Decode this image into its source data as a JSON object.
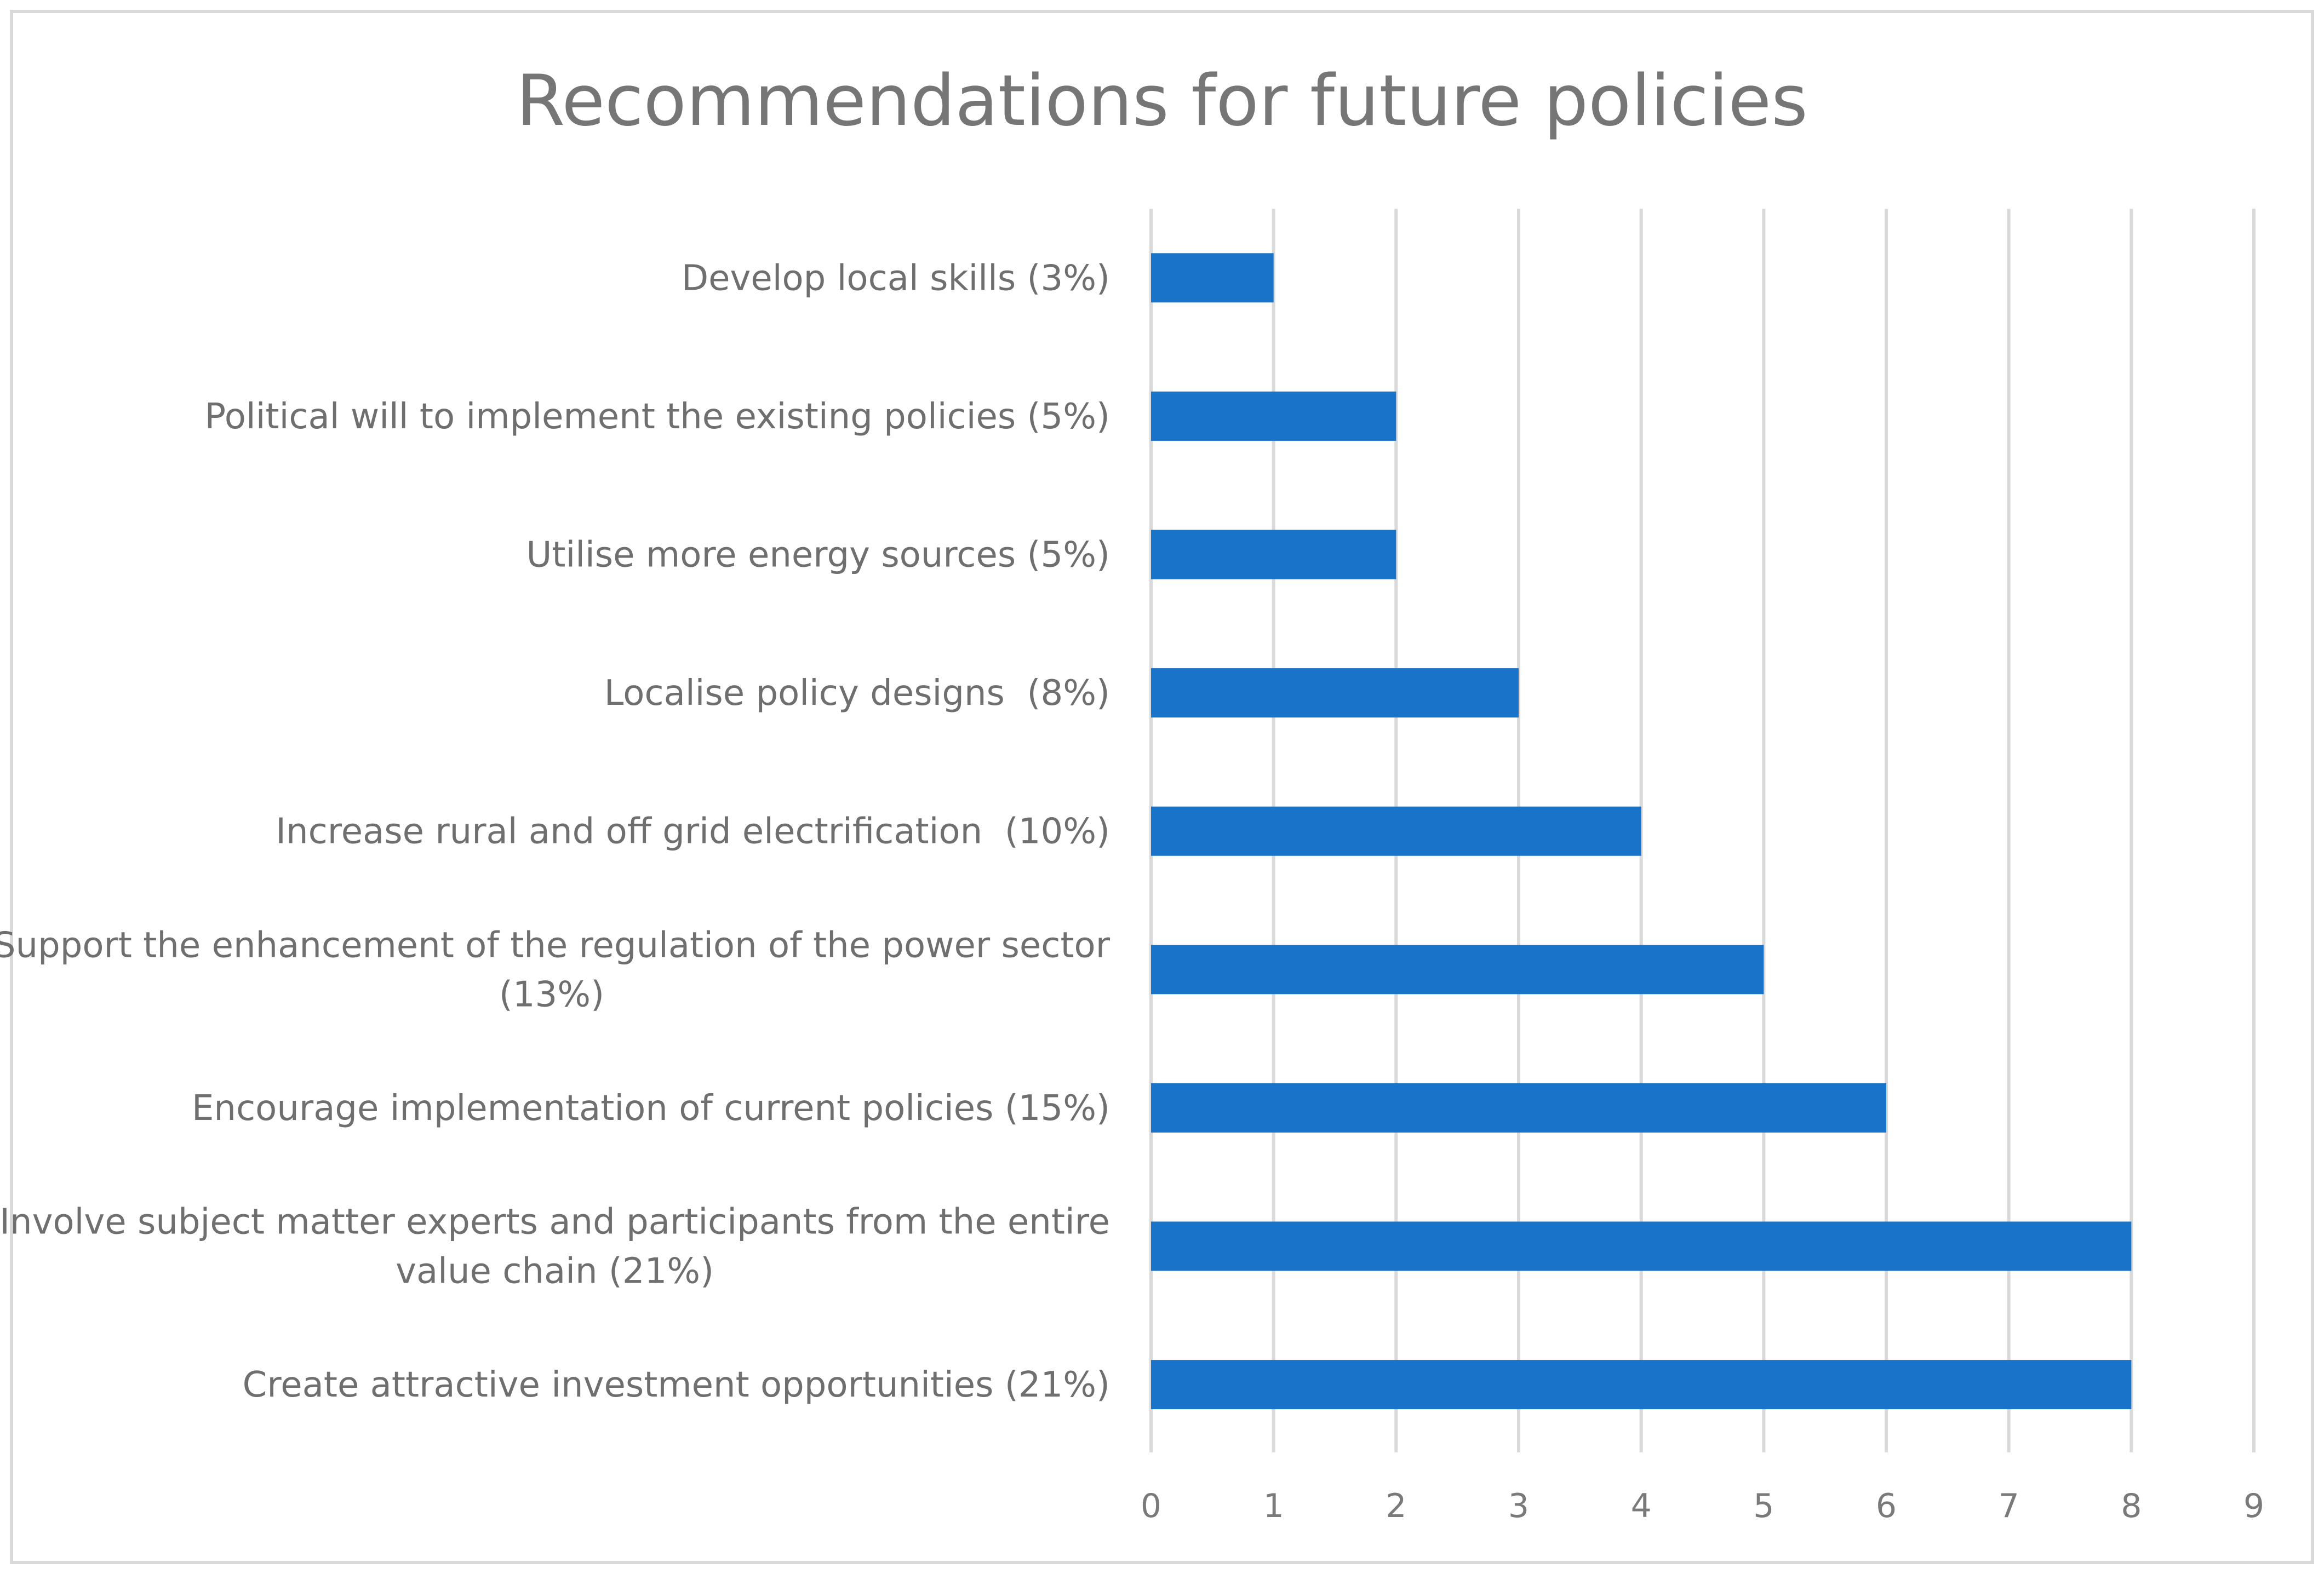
{
  "chart_data": {
    "type": "bar",
    "orientation": "horizontal",
    "title": "Recommendations for future policies",
    "xlabel": "",
    "ylabel": "",
    "xlim": [
      0,
      9
    ],
    "xticks": [
      0,
      1,
      2,
      3,
      4,
      5,
      6,
      7,
      8,
      9
    ],
    "grid": true,
    "legend": "none",
    "bar_color": "#1873c9",
    "categories": [
      [
        "Develop local skills (3%)"
      ],
      [
        "Political will to implement the existing policies (5%)"
      ],
      [
        "Utilise more energy sources (5%)"
      ],
      [
        "Localise policy designs  (8%)"
      ],
      [
        "Increase rural and off grid electrification  (10%)"
      ],
      [
        "Support the enhancement of the regulation of the power sector",
        "(13%)"
      ],
      [
        "Encourage implementation of current policies (15%)"
      ],
      [
        "Involve subject matter experts and participants from the entire",
        "value chain (21%)"
      ],
      [
        "Create attractive investment opportunities (21%)"
      ]
    ],
    "values": [
      1,
      2,
      2,
      3,
      4,
      5,
      6,
      8,
      8
    ]
  }
}
